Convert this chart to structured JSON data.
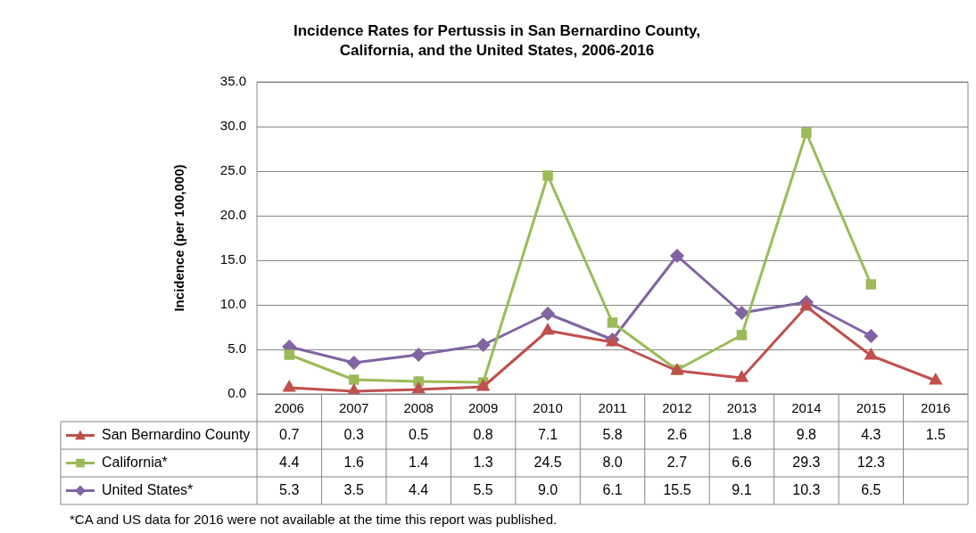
{
  "chart_data": {
    "type": "line",
    "title": "Incidence Rates for Pertussis in San Bernardino County, California, and the United States, 2006-2016",
    "ylabel": "Incidence (per 100,000)",
    "categories": [
      "2006",
      "2007",
      "2008",
      "2009",
      "2010",
      "2011",
      "2012",
      "2013",
      "2014",
      "2015",
      "2016"
    ],
    "series": [
      {
        "name": "San Bernardino County",
        "color": "#c0504d",
        "marker": "triangle",
        "values": [
          0.7,
          0.3,
          0.5,
          0.8,
          7.1,
          5.8,
          2.6,
          1.8,
          9.8,
          4.3,
          1.5
        ],
        "value_labels": [
          "0.7",
          "0.3",
          "0.5",
          "0.8",
          "7.1",
          "5.8",
          "2.6",
          "1.8",
          "9.8",
          "4.3",
          "1.5"
        ]
      },
      {
        "name": "California*",
        "color": "#9bbb59",
        "marker": "square",
        "values": [
          4.4,
          1.6,
          1.4,
          1.3,
          24.5,
          8.0,
          2.7,
          6.6,
          29.3,
          12.3,
          null
        ],
        "value_labels": [
          "4.4",
          "1.6",
          "1.4",
          "1.3",
          "24.5",
          "8.0",
          "2.7",
          "6.6",
          "29.3",
          "12.3",
          null
        ]
      },
      {
        "name": "United States*",
        "color": "#8064a2",
        "marker": "diamond",
        "values": [
          5.3,
          3.5,
          4.4,
          5.5,
          9.0,
          6.1,
          15.5,
          9.1,
          10.3,
          6.5,
          null
        ],
        "value_labels": [
          "5.3",
          "3.5",
          "4.4",
          "5.5",
          "9.0",
          "6.1",
          "15.5",
          "9.1",
          "10.3",
          "6.5",
          null
        ]
      }
    ],
    "ylim": [
      0,
      35
    ],
    "yticks": [
      {
        "value": 0,
        "label": "0.0"
      },
      {
        "value": 5,
        "label": "5.0"
      },
      {
        "value": 10,
        "label": "10.0"
      },
      {
        "value": 15,
        "label": "15.0"
      },
      {
        "value": 20,
        "label": "20.0"
      },
      {
        "value": 25,
        "label": "25.0"
      },
      {
        "value": 30,
        "label": "30.0"
      },
      {
        "value": 35,
        "label": "35.0"
      }
    ],
    "grid": "y",
    "legend": "bottom",
    "line_style": "solid",
    "annotations": [
      "*CA and US data for 2016 were not available at the time this report was published."
    ]
  }
}
